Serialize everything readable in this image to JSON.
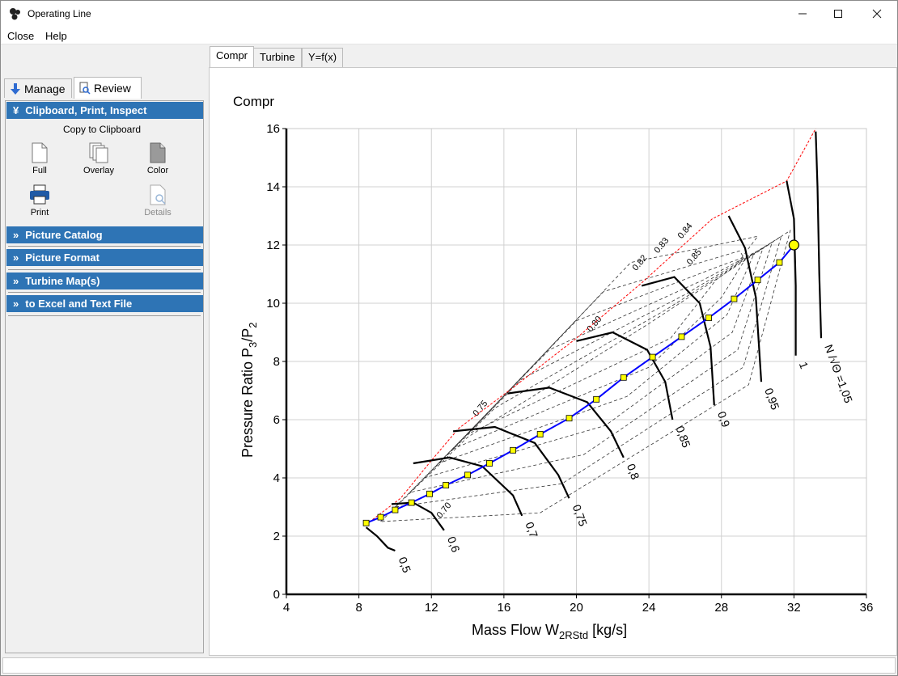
{
  "window": {
    "title": "Operating Line"
  },
  "menu": {
    "close": "Close",
    "help": "Help"
  },
  "left_tabs": {
    "manage": "Manage",
    "review": "Review"
  },
  "sections": {
    "clipboard": "Clipboard, Print, Inspect",
    "picture_catalog": "Picture Catalog",
    "picture_format": "Picture Format",
    "turbine_maps": "Turbine Map(s)",
    "excel": "to Excel and Text File"
  },
  "clipboard": {
    "heading": "Copy to Clipboard",
    "full": "Full",
    "overlay": "Overlay",
    "color": "Color",
    "print": "Print",
    "details": "Details"
  },
  "right_tabs": {
    "compr": "Compr",
    "turbine": "Turbine",
    "yfx": "Y=f(x)"
  },
  "chart_data": {
    "type": "line",
    "title": "Compr",
    "xlabel_main": "Mass Flow  W",
    "xlabel_sub": "2RStd",
    "xlabel_unit": "  [kg/s]",
    "ylabel_main": "Pressure  Ratio  P",
    "ylabel_sub1": "3",
    "ylabel_mid": "/P",
    "ylabel_sub2": "2",
    "xlim": [
      4,
      36
    ],
    "ylim": [
      0,
      16
    ],
    "xticks": [
      "4",
      "8",
      "12",
      "16",
      "20",
      "24",
      "28",
      "32",
      "36"
    ],
    "yticks": [
      "0",
      "2",
      "4",
      "6",
      "8",
      "10",
      "12",
      "14",
      "16"
    ],
    "grid": true,
    "speed_lines": [
      {
        "label": "0,5",
        "points": [
          [
            8.4,
            2.3
          ],
          [
            9.0,
            2.0
          ],
          [
            9.6,
            1.6
          ],
          [
            10.0,
            1.5
          ]
        ]
      },
      {
        "label": "0,6",
        "points": [
          [
            9.8,
            3.1
          ],
          [
            11.0,
            3.15
          ],
          [
            12.0,
            2.8
          ],
          [
            12.7,
            2.2
          ]
        ]
      },
      {
        "label": "0,7",
        "points": [
          [
            11.0,
            4.5
          ],
          [
            13.0,
            4.7
          ],
          [
            14.8,
            4.4
          ],
          [
            16.5,
            3.4
          ],
          [
            17.0,
            2.7
          ]
        ]
      },
      {
        "label": "0,75",
        "points": [
          [
            13.2,
            5.6
          ],
          [
            15.5,
            5.75
          ],
          [
            17.7,
            5.2
          ],
          [
            19.0,
            4.1
          ],
          [
            19.6,
            3.3
          ]
        ]
      },
      {
        "label": "0,8",
        "points": [
          [
            16.2,
            6.9
          ],
          [
            18.5,
            7.1
          ],
          [
            20.6,
            6.6
          ],
          [
            21.9,
            5.6
          ],
          [
            22.6,
            4.7
          ]
        ]
      },
      {
        "label": "0,85",
        "points": [
          [
            20.0,
            8.7
          ],
          [
            22.0,
            9.0
          ],
          [
            23.9,
            8.4
          ],
          [
            24.9,
            7.3
          ],
          [
            25.3,
            6.0
          ]
        ]
      },
      {
        "label": "0,9",
        "points": [
          [
            23.6,
            10.6
          ],
          [
            25.4,
            10.9
          ],
          [
            26.8,
            10.0
          ],
          [
            27.4,
            8.5
          ],
          [
            27.6,
            6.5
          ]
        ]
      },
      {
        "label": "0,95",
        "points": [
          [
            28.4,
            13.0
          ],
          [
            29.3,
            11.9
          ],
          [
            29.9,
            10.2
          ],
          [
            30.2,
            7.3
          ]
        ]
      },
      {
        "label": "1",
        "points": [
          [
            31.6,
            14.2
          ],
          [
            32.0,
            12.9
          ],
          [
            32.1,
            10.6
          ],
          [
            32.1,
            8.2
          ]
        ]
      },
      {
        "label": "N /√Θ =1,05",
        "points": [
          [
            33.2,
            15.9
          ],
          [
            33.3,
            14.0
          ],
          [
            33.4,
            11.0
          ],
          [
            33.5,
            8.8
          ]
        ]
      }
    ],
    "surge_line": [
      [
        8.4,
        2.4
      ],
      [
        10.3,
        3.3
      ],
      [
        12.0,
        4.6
      ],
      [
        13.5,
        5.7
      ],
      [
        16.5,
        7.1
      ],
      [
        20.0,
        8.8
      ],
      [
        23.6,
        10.7
      ],
      [
        27.5,
        12.9
      ],
      [
        31.6,
        14.2
      ],
      [
        33.2,
        16.0
      ]
    ],
    "efficiency_labels": [
      "0.70",
      "0.75",
      "0.80",
      "0.82",
      "0.83",
      "0.84",
      "0.85"
    ],
    "operating_line": [
      [
        8.4,
        2.45
      ],
      [
        9.2,
        2.65
      ],
      [
        10.0,
        2.9
      ],
      [
        10.9,
        3.15
      ],
      [
        11.9,
        3.45
      ],
      [
        12.8,
        3.75
      ],
      [
        14.0,
        4.1
      ],
      [
        15.2,
        4.5
      ],
      [
        16.5,
        4.95
      ],
      [
        18.0,
        5.5
      ],
      [
        19.6,
        6.05
      ],
      [
        21.1,
        6.7
      ],
      [
        22.6,
        7.45
      ],
      [
        24.2,
        8.15
      ],
      [
        25.8,
        8.85
      ],
      [
        27.3,
        9.5
      ],
      [
        28.7,
        10.15
      ],
      [
        30.0,
        10.8
      ],
      [
        31.2,
        11.4
      ],
      [
        32.0,
        12.0
      ]
    ],
    "operating_point": [
      32.0,
      12.0
    ]
  },
  "colors": {
    "section": "#2e74b5",
    "operating_line": "#0000ff",
    "marker": "#ffff00",
    "surge": "#ff0000"
  }
}
